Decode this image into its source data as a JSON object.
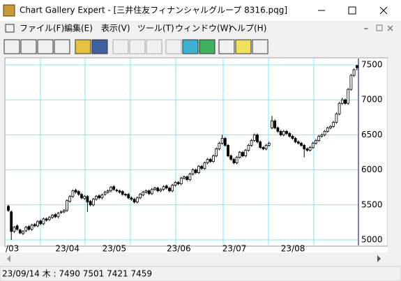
{
  "window": {
    "title": "Chart Gallery Expert - [三井住友フィナンシャルグループ 8316.pqg]"
  },
  "menu": [
    "ファイル(F)",
    "編集(E)",
    "表示(V)",
    "ツール(T)",
    "ウィンドウ(W)",
    "ヘルプ(H)"
  ],
  "status_bar": {
    "text": "23/09/14 木 : 7490 7501 7421 7459"
  },
  "chart_data": {
    "type": "candlestick",
    "open": [
      5480,
      5400,
      5120,
      5200,
      5140,
      5090,
      5130,
      5190,
      5150,
      5220,
      5200,
      5270,
      5230,
      5300,
      5290,
      5320,
      5360,
      5330,
      5390,
      5400,
      5420,
      5550,
      5620,
      5710,
      5690,
      5650,
      5590,
      5620,
      5550,
      5500,
      5580,
      5630,
      5600,
      5650,
      5680,
      5700,
      5760,
      5710,
      5700,
      5690,
      5650,
      5650,
      5600,
      5580,
      5540,
      5600,
      5640,
      5680,
      5700,
      5660,
      5720,
      5740,
      5700,
      5720,
      5770,
      5740,
      5700,
      5780,
      5820,
      5800,
      5880,
      5900,
      5860,
      5940,
      6000,
      5960,
      6050,
      6020,
      6100,
      6150,
      6120,
      6200,
      6300,
      6380,
      6450,
      6350,
      6200,
      6150,
      6100,
      6180,
      6250,
      6200,
      6280,
      6350,
      6420,
      6500,
      6400,
      6320,
      6300,
      6350,
      6600,
      6700,
      6600,
      6550,
      6500,
      6550,
      6520,
      6480,
      6450,
      6400,
      6380,
      6350,
      6300,
      6280,
      6320,
      6380,
      6420,
      6480,
      6500,
      6550,
      6600,
      6620,
      6680,
      6800,
      6950,
      7000,
      6950,
      7150,
      7350,
      7490
    ],
    "high": [
      5500,
      5420,
      5200,
      5220,
      5160,
      5140,
      5200,
      5210,
      5230,
      5240,
      5280,
      5290,
      5320,
      5320,
      5340,
      5370,
      5380,
      5400,
      5420,
      5440,
      5580,
      5640,
      5720,
      5730,
      5710,
      5670,
      5640,
      5640,
      5570,
      5600,
      5640,
      5650,
      5660,
      5700,
      5720,
      5770,
      5780,
      5730,
      5720,
      5710,
      5670,
      5670,
      5620,
      5600,
      5620,
      5670,
      5700,
      5720,
      5720,
      5740,
      5760,
      5760,
      5740,
      5780,
      5790,
      5760,
      5800,
      5840,
      5840,
      5900,
      5920,
      5920,
      5960,
      6020,
      6020,
      6070,
      6070,
      6120,
      6170,
      6170,
      6220,
      6320,
      6400,
      6500,
      6470,
      6370,
      6220,
      6170,
      6200,
      6270,
      6270,
      6300,
      6370,
      6440,
      6520,
      6520,
      6420,
      6340,
      6370,
      6400,
      6770,
      6720,
      6620,
      6570,
      6570,
      6570,
      6540,
      6500,
      6470,
      6420,
      6400,
      6370,
      6320,
      6340,
      6400,
      6440,
      6500,
      6520,
      6570,
      6620,
      6640,
      6700,
      6820,
      6970,
      7030,
      7020,
      7170,
      7370,
      7450,
      7501
    ],
    "low": [
      5400,
      5000,
      5100,
      5130,
      5080,
      5070,
      5110,
      5130,
      5130,
      5180,
      5180,
      5210,
      5210,
      5260,
      5270,
      5300,
      5310,
      5310,
      5370,
      5380,
      5400,
      5530,
      5600,
      5660,
      5630,
      5580,
      5570,
      5400,
      5480,
      5480,
      5560,
      5580,
      5580,
      5630,
      5660,
      5680,
      5700,
      5680,
      5660,
      5630,
      5620,
      5580,
      5560,
      5520,
      5520,
      5580,
      5620,
      5660,
      5640,
      5640,
      5700,
      5680,
      5680,
      5700,
      5720,
      5680,
      5680,
      5760,
      5780,
      5780,
      5860,
      5840,
      5840,
      5920,
      5940,
      5940,
      6000,
      6000,
      6080,
      6100,
      6100,
      6180,
      6280,
      6360,
      6330,
      6180,
      6130,
      6080,
      6080,
      6160,
      6180,
      6180,
      6260,
      6330,
      6400,
      6380,
      6300,
      6280,
      6280,
      6330,
      6580,
      6580,
      6530,
      6480,
      6480,
      6500,
      6460,
      6430,
      6380,
      6360,
      6330,
      6180,
      6260,
      6260,
      6300,
      6360,
      6400,
      6460,
      6480,
      6530,
      6580,
      6600,
      6660,
      6780,
      6930,
      6930,
      6930,
      7130,
      7330,
      7421
    ],
    "close": [
      5420,
      5120,
      5180,
      5150,
      5100,
      5120,
      5180,
      5150,
      5210,
      5200,
      5260,
      5230,
      5300,
      5280,
      5320,
      5350,
      5330,
      5380,
      5400,
      5420,
      5560,
      5620,
      5700,
      5680,
      5650,
      5600,
      5620,
      5540,
      5500,
      5580,
      5620,
      5600,
      5640,
      5680,
      5700,
      5750,
      5720,
      5700,
      5680,
      5650,
      5640,
      5600,
      5580,
      5540,
      5600,
      5650,
      5680,
      5700,
      5660,
      5720,
      5740,
      5700,
      5720,
      5760,
      5740,
      5700,
      5780,
      5820,
      5800,
      5880,
      5900,
      5860,
      5940,
      6000,
      5960,
      6050,
      6020,
      6100,
      6150,
      6120,
      6200,
      6300,
      6380,
      6450,
      6350,
      6200,
      6150,
      6100,
      6180,
      6250,
      6200,
      6280,
      6350,
      6420,
      6500,
      6400,
      6320,
      6300,
      6350,
      6380,
      6700,
      6600,
      6550,
      6500,
      6550,
      6520,
      6480,
      6450,
      6400,
      6380,
      6350,
      6300,
      6280,
      6320,
      6380,
      6420,
      6480,
      6500,
      6550,
      6600,
      6620,
      6680,
      6800,
      6950,
      7000,
      6950,
      7150,
      7350,
      7430,
      7459
    ],
    "ylim": [
      4920,
      7560
    ],
    "yticks": [
      5000,
      5500,
      6000,
      6500,
      7000,
      7500
    ],
    "xticks": [
      {
        "value": 0,
        "label": "/03"
      },
      {
        "value": 17,
        "label": "23/04"
      },
      {
        "value": 33,
        "label": "23/05"
      },
      {
        "value": 55,
        "label": "23/06"
      },
      {
        "value": 74,
        "label": "23/07"
      },
      {
        "value": 94,
        "label": "23/08"
      }
    ],
    "grid": true,
    "grid_color": "#80e8f4",
    "up_color": "#ffffff",
    "down_color": "#000000"
  }
}
